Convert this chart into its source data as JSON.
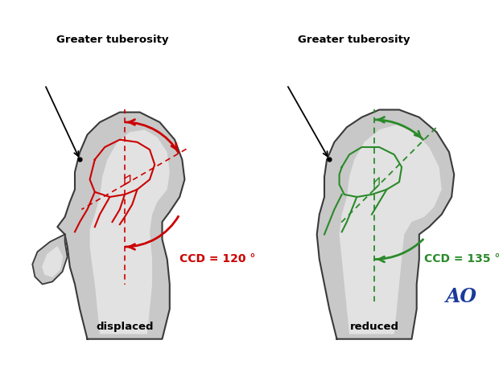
{
  "bg_color": "#ffffff",
  "title_left": "Greater tuberosity",
  "title_right": "Greater tuberosity",
  "label_left": "displaced",
  "label_right": "reduced",
  "ccd_left": "CCD = 120 °",
  "ccd_right": "CCD = 135 °",
  "color_left": "#cc0000",
  "color_right": "#2a8a2a",
  "bone_outer_color": "#c8c8c8",
  "bone_inner_color": "#e2e2e2",
  "bone_outline_color": "#3a3a3a",
  "ao_color": "#1a3a9a",
  "fig_width": 6.2,
  "fig_height": 4.59,
  "dpi": 100
}
